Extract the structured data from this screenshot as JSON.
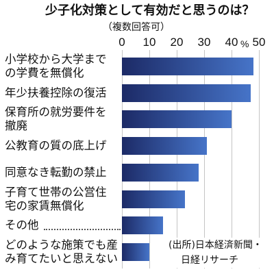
{
  "chart_data": {
    "type": "bar",
    "orientation": "horizontal",
    "title": "少子化対策として有効だと思うのは？",
    "subtitle": "（複数回答可）",
    "categories": [
      "小学校から大学まで\nの学費を無償化",
      "年少扶養控除の復活",
      "保育所の就労要件を\n撤廃",
      "公教育の質の底上げ",
      "同意なき転勤の禁止",
      "子育て世帯の公営住\n宅の家賃無償化",
      "その他",
      "どのような施策でも産\nみ育てたいと思えない"
    ],
    "values": [
      48,
      47,
      40,
      31,
      28,
      23,
      15,
      10
    ],
    "unit": "%",
    "xticks": [
      0,
      10,
      20,
      30,
      40,
      50
    ],
    "xlim": [
      0,
      50
    ],
    "grid": "vertical",
    "legend": "none",
    "source": "(出所)日本経済新聞・\n日経リサーチ"
  },
  "colors": {
    "bar_start": "#1c2a66",
    "bar_end": "#4674c8",
    "grid": "#c4c4c4",
    "leader": "#555555",
    "text": "#111111"
  }
}
